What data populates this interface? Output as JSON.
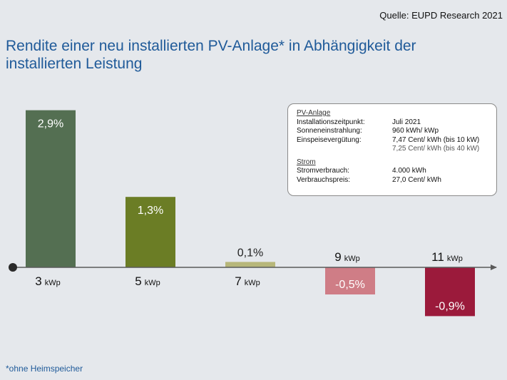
{
  "source": "Quelle: EUPD Research 2021",
  "title": "Rendite einer neu installierten PV-Anlage* in Abhängigkeit der installierten Leistung",
  "footnote": "*ohne Heimspeicher",
  "colors": {
    "title": "#1f5a99",
    "background": "#e5e8ec",
    "bars": [
      "#546f52",
      "#6b7d25",
      "#b7b77a",
      "#cf7d86",
      "#9b1a3b"
    ]
  },
  "info_box": {
    "pv_heading": "PV-Anlage",
    "rows_pv": [
      {
        "label": "Installationszeitpunkt:",
        "value": "Juli 2021"
      },
      {
        "label": "Sonneneinstrahlung:",
        "value": "960 kWh/ kWp"
      },
      {
        "label": "Einspeisevergütung:",
        "value": "7,47 Cent/ kWh (bis 10 kW)"
      },
      {
        "label": "",
        "value": "7,25 Cent/ kWh (bis 40 kW)"
      }
    ],
    "strom_heading": "Strom",
    "rows_strom": [
      {
        "label": "Stromverbrauch:",
        "value": "4.000 kWh"
      },
      {
        "label": "Verbrauchspreis:",
        "value": "27,0 Cent/ kWh"
      }
    ]
  },
  "chart_data": {
    "type": "bar",
    "categories": [
      "3 kWp",
      "5 kWp",
      "7 kWp",
      "9 kWp",
      "11 kWp"
    ],
    "category_numbers": [
      "3",
      "5",
      "7",
      "9",
      "11"
    ],
    "category_unit": "kWp",
    "values": [
      2.9,
      1.3,
      0.1,
      -0.5,
      -0.9
    ],
    "value_labels": [
      "2,9%",
      "1,3%",
      "0,1%",
      "-0,5%",
      "-0,9%"
    ],
    "ylim": [
      -0.9,
      2.9
    ],
    "grid": false,
    "legend": "none"
  }
}
